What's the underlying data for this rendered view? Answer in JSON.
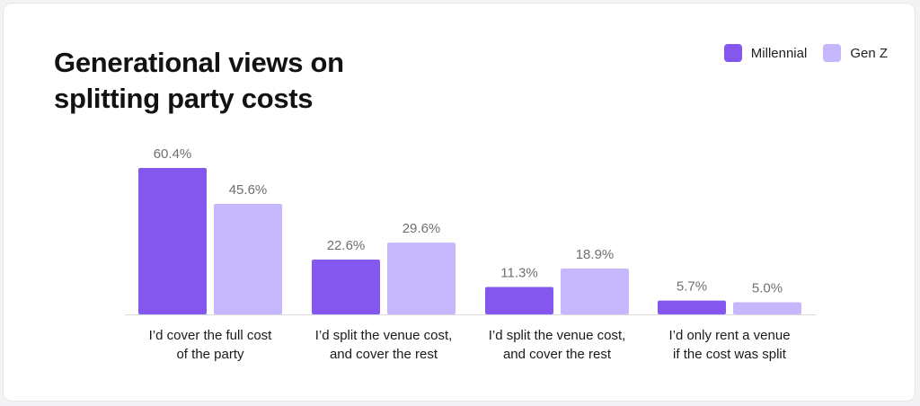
{
  "header": {
    "title_line1": "Generational views on",
    "title_line2": "splitting party costs"
  },
  "legend": [
    {
      "label": "Millennial",
      "color": "#8457ee"
    },
    {
      "label": "Gen Z",
      "color": "#c6b7fc"
    }
  ],
  "chart_data": {
    "type": "bar",
    "title": "Generational views on splitting party costs",
    "categories": [
      [
        "I’d cover the full cost",
        "of the party"
      ],
      [
        "I’d split the venue cost,",
        "and cover the rest"
      ],
      [
        "I’d split the venue cost,",
        "and cover the rest"
      ],
      [
        "I’d only rent a venue",
        "if the cost was split"
      ]
    ],
    "series": [
      {
        "name": "Millennial",
        "color": "#8457ee",
        "values": [
          60.4,
          22.6,
          11.3,
          5.7
        ],
        "labels": [
          "60.4%",
          "22.6%",
          "11.3%",
          "5.7%"
        ]
      },
      {
        "name": "Gen Z",
        "color": "#c6b7fc",
        "values": [
          45.6,
          29.6,
          18.9,
          5.0
        ],
        "labels": [
          "45.6%",
          "29.6%",
          "18.9%",
          "5.0%"
        ]
      }
    ],
    "ylim": [
      0,
      60.4
    ],
    "grid": false,
    "legend_position": "top-right"
  }
}
